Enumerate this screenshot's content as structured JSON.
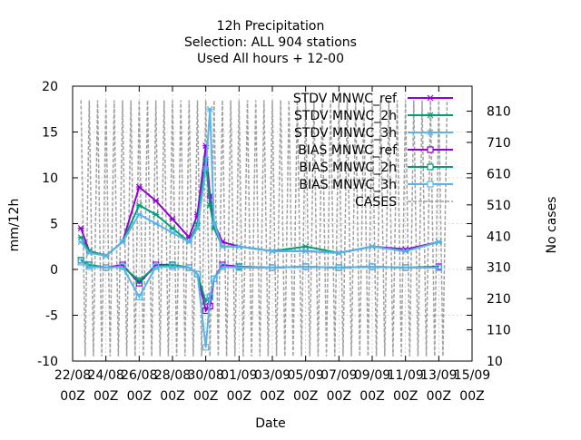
{
  "chart_data": {
    "type": "line",
    "title_lines": [
      "12h Precipitation",
      "Selection: ALL    904 stations",
      "Used  All hours  + 12-00"
    ],
    "xlabel": "Date",
    "ylabel": "mm/12h",
    "y2label": "No cases",
    "ylim": [
      -10,
      20
    ],
    "y2lim": [
      10,
      890
    ],
    "yticks": [
      "-10",
      "-5",
      "0",
      "5",
      "10",
      "15",
      "20"
    ],
    "y2ticks": [
      "10",
      "110",
      "210",
      "310",
      "410",
      "510",
      "610",
      "710",
      "810"
    ],
    "xticks": [
      {
        "top": "22/08",
        "bottom": "00Z",
        "day": 0
      },
      {
        "top": "24/08",
        "bottom": "00Z",
        "day": 2
      },
      {
        "top": "26/08",
        "bottom": "00Z",
        "day": 4
      },
      {
        "top": "28/08",
        "bottom": "00Z",
        "day": 6
      },
      {
        "top": "30/08",
        "bottom": "00Z",
        "day": 8
      },
      {
        "top": "01/09",
        "bottom": "00Z",
        "day": 10
      },
      {
        "top": "03/09",
        "bottom": "00Z",
        "day": 12
      },
      {
        "top": "05/09",
        "bottom": "00Z",
        "day": 14
      },
      {
        "top": "07/09",
        "bottom": "00Z",
        "day": 16
      },
      {
        "top": "09/09",
        "bottom": "00Z",
        "day": 18
      },
      {
        "top": "11/09",
        "bottom": "00Z",
        "day": 20
      },
      {
        "top": "13/09",
        "bottom": "00Z",
        "day": 22
      },
      {
        "top": "15/09",
        "bottom": "00Z",
        "day": 24
      }
    ],
    "grid": true,
    "legend_position": "top-right",
    "series": [
      {
        "name": "STDV MNWC_ref",
        "color": "#9400d3",
        "kind": "stdv",
        "axis": "y1",
        "points": [
          [
            0.5,
            4.5
          ],
          [
            1,
            2.0
          ],
          [
            2,
            1.5
          ],
          [
            3,
            3.0
          ],
          [
            4,
            9.0
          ],
          [
            5,
            7.5
          ],
          [
            6,
            5.5
          ],
          [
            7,
            3.5
          ],
          [
            7.5,
            6.0
          ],
          [
            8,
            13.5
          ],
          [
            8.25,
            8.0
          ],
          [
            8.5,
            5.0
          ],
          [
            9,
            3.0
          ],
          [
            10,
            2.5
          ],
          [
            12,
            2.0
          ],
          [
            14,
            2.0
          ],
          [
            16,
            1.8
          ],
          [
            18,
            2.5
          ],
          [
            20,
            2.2
          ],
          [
            22,
            3.0
          ]
        ]
      },
      {
        "name": "STDV MNWC_2h",
        "color": "#009e73",
        "kind": "stdv",
        "axis": "y1",
        "points": [
          [
            0.5,
            3.5
          ],
          [
            1,
            2.0
          ],
          [
            2,
            1.5
          ],
          [
            3,
            3.0
          ],
          [
            4,
            7.0
          ],
          [
            5,
            6.0
          ],
          [
            6,
            4.5
          ],
          [
            7,
            3.0
          ],
          [
            7.5,
            5.0
          ],
          [
            8,
            12.0
          ],
          [
            8.25,
            7.0
          ],
          [
            8.5,
            4.5
          ],
          [
            9,
            2.5
          ],
          [
            10,
            2.5
          ],
          [
            12,
            2.0
          ],
          [
            14,
            2.5
          ],
          [
            16,
            1.8
          ],
          [
            18,
            2.5
          ],
          [
            20,
            2.0
          ],
          [
            22,
            3.0
          ]
        ]
      },
      {
        "name": "STDV MNWC_3h",
        "color": "#56b4e9",
        "kind": "stdv",
        "axis": "y1",
        "points": [
          [
            0.5,
            3.0
          ],
          [
            1,
            1.8
          ],
          [
            2,
            1.5
          ],
          [
            3,
            3.0
          ],
          [
            4,
            6.0
          ],
          [
            5,
            5.0
          ],
          [
            6,
            4.0
          ],
          [
            7,
            3.0
          ],
          [
            7.5,
            4.5
          ],
          [
            8,
            11.0
          ],
          [
            8.25,
            17.5
          ],
          [
            8.5,
            5.0
          ],
          [
            9,
            2.5
          ],
          [
            10,
            2.5
          ],
          [
            12,
            2.0
          ],
          [
            14,
            2.0
          ],
          [
            16,
            1.8
          ],
          [
            18,
            2.5
          ],
          [
            20,
            2.0
          ],
          [
            22,
            3.0
          ]
        ]
      },
      {
        "name": "BIAS MNWC_ref",
        "color": "#9400d3",
        "kind": "bias",
        "axis": "y1",
        "points": [
          [
            0.5,
            1.0
          ],
          [
            1,
            0.5
          ],
          [
            2,
            0.2
          ],
          [
            3,
            0.5
          ],
          [
            4,
            -1.5
          ],
          [
            5,
            0.5
          ],
          [
            6,
            0.5
          ],
          [
            7,
            0.2
          ],
          [
            7.5,
            -0.5
          ],
          [
            8,
            -4.5
          ],
          [
            8.25,
            -4.0
          ],
          [
            8.5,
            -1.0
          ],
          [
            9,
            0.5
          ],
          [
            10,
            0.3
          ],
          [
            12,
            0.2
          ],
          [
            14,
            0.3
          ],
          [
            16,
            0.2
          ],
          [
            18,
            0.3
          ],
          [
            20,
            0.2
          ],
          [
            22,
            0.3
          ]
        ]
      },
      {
        "name": "BIAS MNWC_2h",
        "color": "#009e73",
        "kind": "bias",
        "axis": "y1",
        "points": [
          [
            0.5,
            1.0
          ],
          [
            1,
            0.5
          ],
          [
            2,
            0.2
          ],
          [
            3,
            0.3
          ],
          [
            4,
            -1.2
          ],
          [
            5,
            0.3
          ],
          [
            6,
            0.5
          ],
          [
            7,
            0.2
          ],
          [
            7.5,
            -0.5
          ],
          [
            8,
            -3.5
          ],
          [
            8.25,
            -3.0
          ],
          [
            8.5,
            -1.0
          ],
          [
            9,
            0.3
          ],
          [
            10,
            0.3
          ],
          [
            12,
            0.2
          ],
          [
            14,
            0.3
          ],
          [
            16,
            0.2
          ],
          [
            18,
            0.3
          ],
          [
            20,
            0.2
          ],
          [
            22,
            0.2
          ]
        ]
      },
      {
        "name": "BIAS MNWC_3h",
        "color": "#56b4e9",
        "kind": "bias",
        "axis": "y1",
        "points": [
          [
            0.5,
            0.8
          ],
          [
            1,
            0.3
          ],
          [
            2,
            0.2
          ],
          [
            3,
            0.3
          ],
          [
            4,
            -3.0
          ],
          [
            5,
            0.3
          ],
          [
            6,
            0.3
          ],
          [
            7,
            0.2
          ],
          [
            7.5,
            -0.5
          ],
          [
            8,
            -8.5
          ],
          [
            8.25,
            -3.0
          ],
          [
            8.5,
            -1.0
          ],
          [
            9,
            0.3
          ],
          [
            10,
            0.2
          ],
          [
            12,
            0.2
          ],
          [
            14,
            0.3
          ],
          [
            16,
            0.2
          ],
          [
            18,
            0.3
          ],
          [
            20,
            0.2
          ],
          [
            22,
            0.2
          ]
        ]
      },
      {
        "name": "CASES",
        "color": "#a0a0a0",
        "kind": "cases",
        "axis": "y2",
        "high": 845,
        "low": 25,
        "step_days": 0.25,
        "start_day": 0.5,
        "end_day": 22.5
      }
    ]
  }
}
